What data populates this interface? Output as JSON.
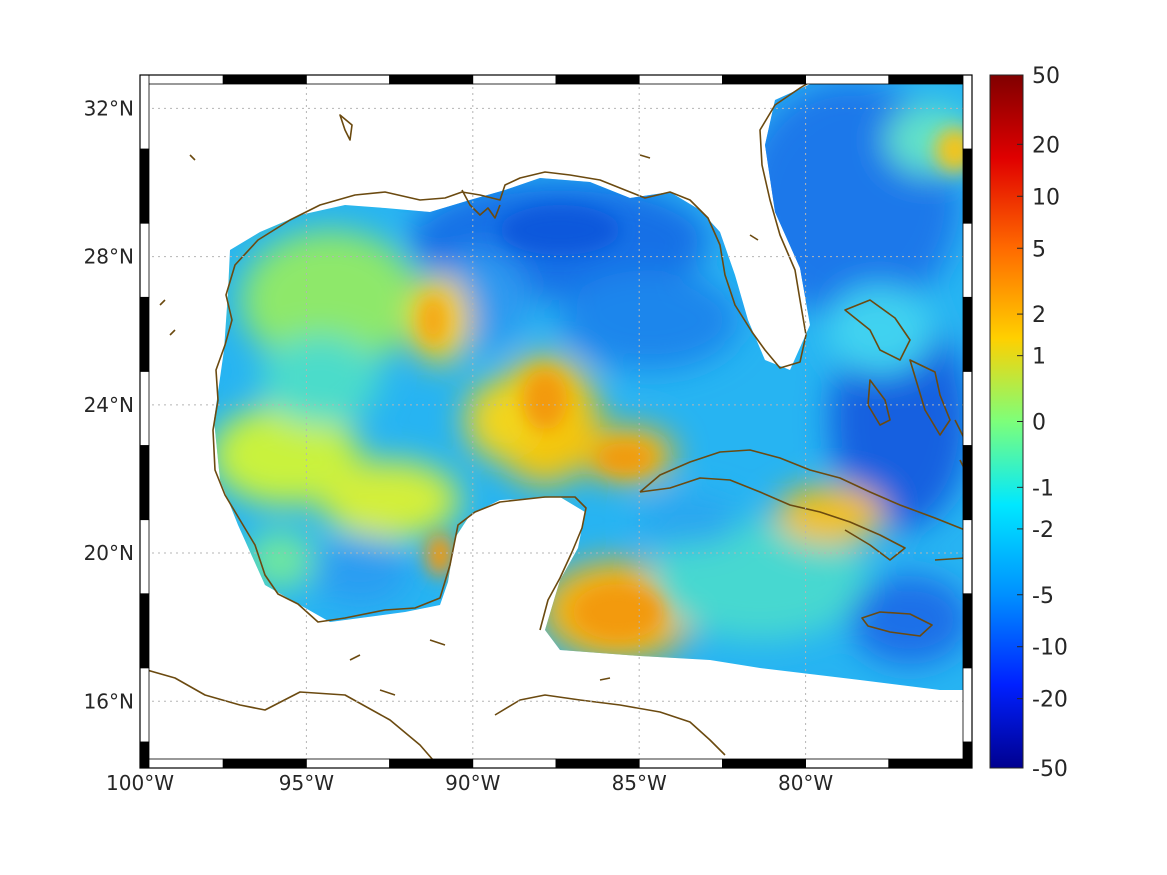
{
  "map": {
    "lon_range": [
      -100,
      -75
    ],
    "lat_range": [
      14.2,
      32.9
    ],
    "lon_ticks": [
      {
        "value": -100,
        "label": "100°W"
      },
      {
        "value": -95,
        "label": "95°W"
      },
      {
        "value": -90,
        "label": "90°W"
      },
      {
        "value": -85,
        "label": "85°W"
      },
      {
        "value": -80,
        "label": "80°W"
      }
    ],
    "lat_ticks": [
      {
        "value": 32,
        "label": "32°N"
      },
      {
        "value": 28,
        "label": "28°N"
      },
      {
        "value": 24,
        "label": "24°N"
      },
      {
        "value": 20,
        "label": "20°N"
      },
      {
        "value": 16,
        "label": "16°N"
      }
    ],
    "grid": "dotted",
    "frame": "black-white alternating",
    "coastline_color": "#6b4a10"
  },
  "colorbar": {
    "colormap": "jet",
    "orientation": "vertical",
    "placement": "right",
    "ticks": [
      "50",
      "20",
      "10",
      "5",
      "2",
      "1",
      "0",
      "-1",
      "-2",
      "-5",
      "-10",
      "-20",
      "-50"
    ]
  }
}
